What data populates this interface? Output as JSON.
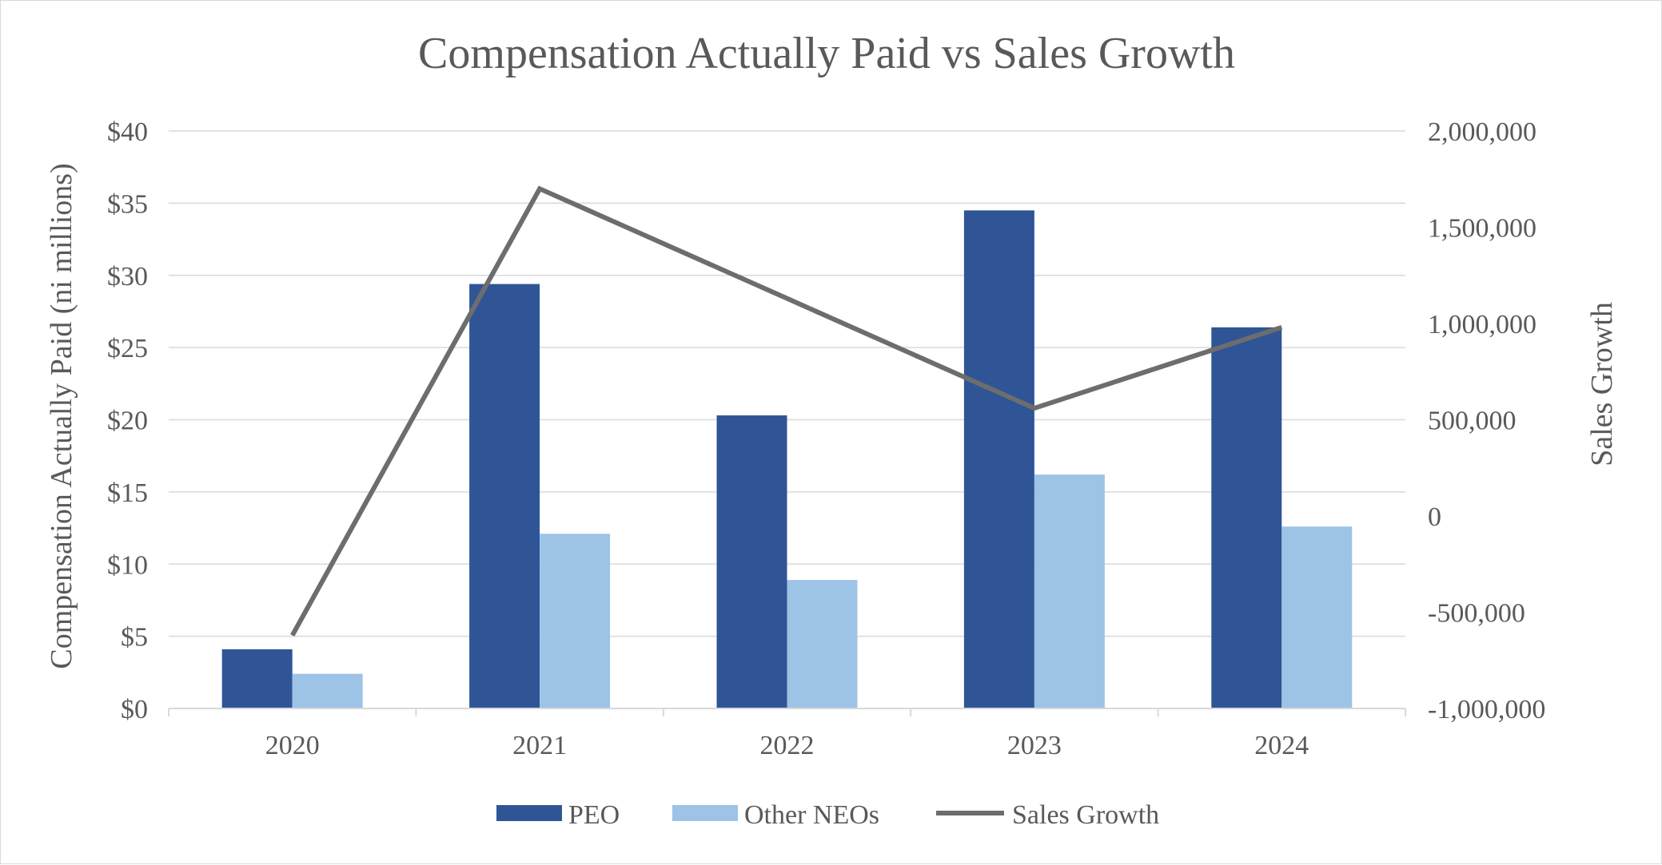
{
  "chart_data": {
    "type": "bar",
    "title": "Compensation Actually Paid vs Sales Growth",
    "categories": [
      "2020",
      "2021",
      "2022",
      "2023",
      "2024"
    ],
    "ylabel": "Compensation Actually Paid (ni millions)",
    "ylabel_right": "Sales Growth",
    "ylim": [
      0,
      40
    ],
    "ylim_right": [
      -1000000,
      2000000
    ],
    "y_ticks": [
      "$0",
      "$5",
      "$10",
      "$15",
      "$20",
      "$25",
      "$30",
      "$35",
      "$40"
    ],
    "y_ticks_right": [
      "-1,000,000",
      "-500,000",
      "0",
      "500,000",
      "1,000,000",
      "1,500,000",
      "2,000,000"
    ],
    "grid": true,
    "legend_position": "bottom",
    "series": [
      {
        "name": "PEO",
        "kind": "bar",
        "axis": "left",
        "color": "#2f5597",
        "values": [
          4.1,
          29.4,
          20.3,
          34.5,
          26.4
        ]
      },
      {
        "name": "Other NEOs",
        "kind": "bar",
        "axis": "left",
        "color": "#9dc3e6",
        "values": [
          2.4,
          12.1,
          8.9,
          16.2,
          12.6
        ]
      },
      {
        "name": "Sales Growth",
        "kind": "line",
        "axis": "right",
        "color": "#6d6d6d",
        "values": [
          -620000,
          1700000,
          1130000,
          560000,
          980000
        ]
      }
    ]
  }
}
